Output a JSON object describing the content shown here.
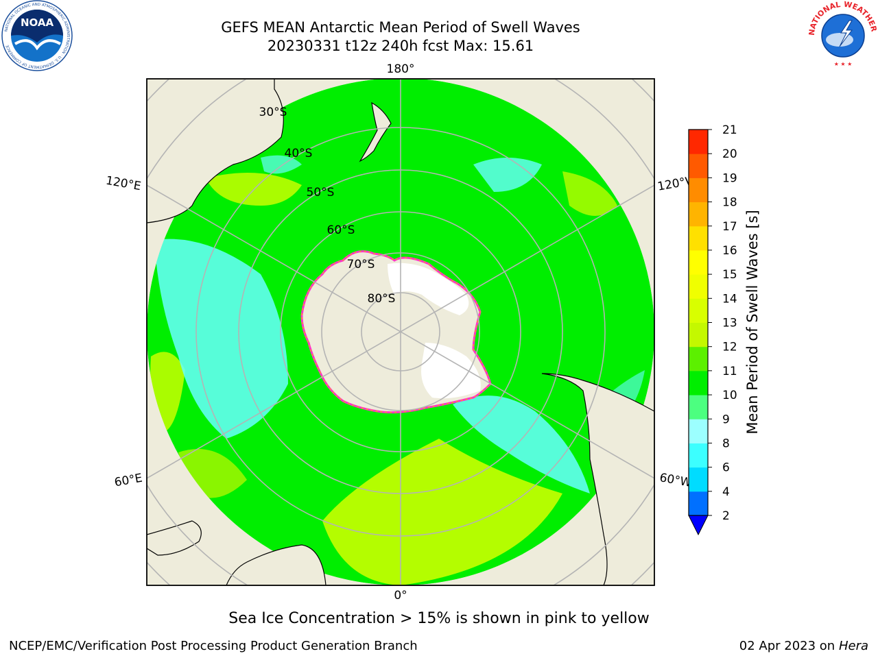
{
  "header": {
    "title_line1": "GEFS MEAN Antarctic Mean Period of Swell Waves",
    "title_line2": "20230331 t12z 240h fcst   Max: 15.61"
  },
  "logos": {
    "left": "noaa-logo",
    "left_text": "NOAA",
    "left_ring_text": "NATIONAL OCEANIC AND ATMOSPHERIC ADMINISTRATION · U.S. DEPARTMENT OF COMMERCE",
    "right": "nws-logo",
    "right_ring_text": "NATIONAL WEATHER SERVICE"
  },
  "map": {
    "projection": "south-polar-stereographic",
    "longitude_labels": {
      "top": "180°",
      "bottom": "0°",
      "left_upper": "120°E",
      "left_lower": "60°E",
      "right_upper": "120°W",
      "right_lower": "60°W"
    },
    "latitude_labels": [
      "30°S",
      "40°S",
      "50°S",
      "60°S",
      "70°S",
      "80°S"
    ],
    "colors": {
      "land": "#eeecdb",
      "ocean_green": "#00ee00",
      "ocean_yellow": "#d4ff00",
      "ocean_cyan": "#66ffff",
      "sea_ice": "#ff33cc",
      "graticule": "#b4b4b4"
    }
  },
  "colorbar": {
    "label": "Mean Period of Swell Waves [s]",
    "ticks": [
      "2",
      "4",
      "6",
      "8",
      "9",
      "10",
      "11",
      "12",
      "13",
      "14",
      "15",
      "16",
      "17",
      "18",
      "19",
      "20",
      "21"
    ],
    "colors": [
      "#0070ff",
      "#00dcff",
      "#3cffff",
      "#9cffff",
      "#4cff80",
      "#00ee00",
      "#5cf000",
      "#c4f800",
      "#d8ff00",
      "#f0ff00",
      "#ffff00",
      "#ffe000",
      "#ffb400",
      "#ff8c00",
      "#ff5a00",
      "#ff2800"
    ],
    "extend_min_color": "#0000ff"
  },
  "note": "Sea Ice Concentration > 15% is shown in pink to yellow",
  "footer": {
    "left": "NCEP/EMC/Verification Post Processing Product Generation Branch",
    "right_date": "02 Apr 2023 on",
    "right_host": "Hera"
  }
}
